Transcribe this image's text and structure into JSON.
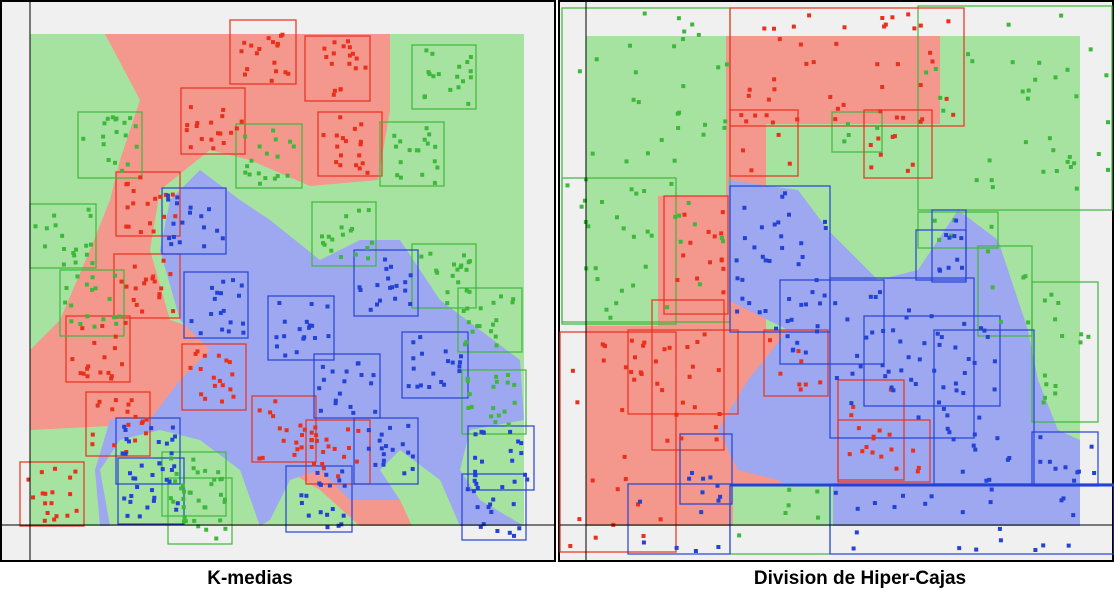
{
  "colors": {
    "red_region": "#f4978c",
    "green_region": "#a6e3a0",
    "blue_region": "#9da8f0",
    "red_point": "#e8301c",
    "green_point": "#3db83a",
    "blue_point": "#2342d6",
    "panel_background": "#f0f0f0",
    "frame": "#000000"
  },
  "chart_data": [
    {
      "type": "scatter",
      "title": "K-medias",
      "xlabel": "",
      "ylabel": "",
      "legend": "none",
      "grid": false,
      "series": [
        {
          "color": "#e8301c",
          "class": "red"
        },
        {
          "color": "#3db83a",
          "class": "green"
        },
        {
          "color": "#2342d6",
          "class": "blue"
        }
      ]
    },
    {
      "type": "scatter",
      "title": "Division de Hiper-Cajas",
      "xlabel": "",
      "ylabel": "",
      "legend": "none",
      "grid": false,
      "series": [
        {
          "color": "#e8301c",
          "class": "red"
        },
        {
          "color": "#3db83a",
          "class": "green"
        },
        {
          "color": "#2342d6",
          "class": "blue"
        }
      ]
    }
  ]
}
